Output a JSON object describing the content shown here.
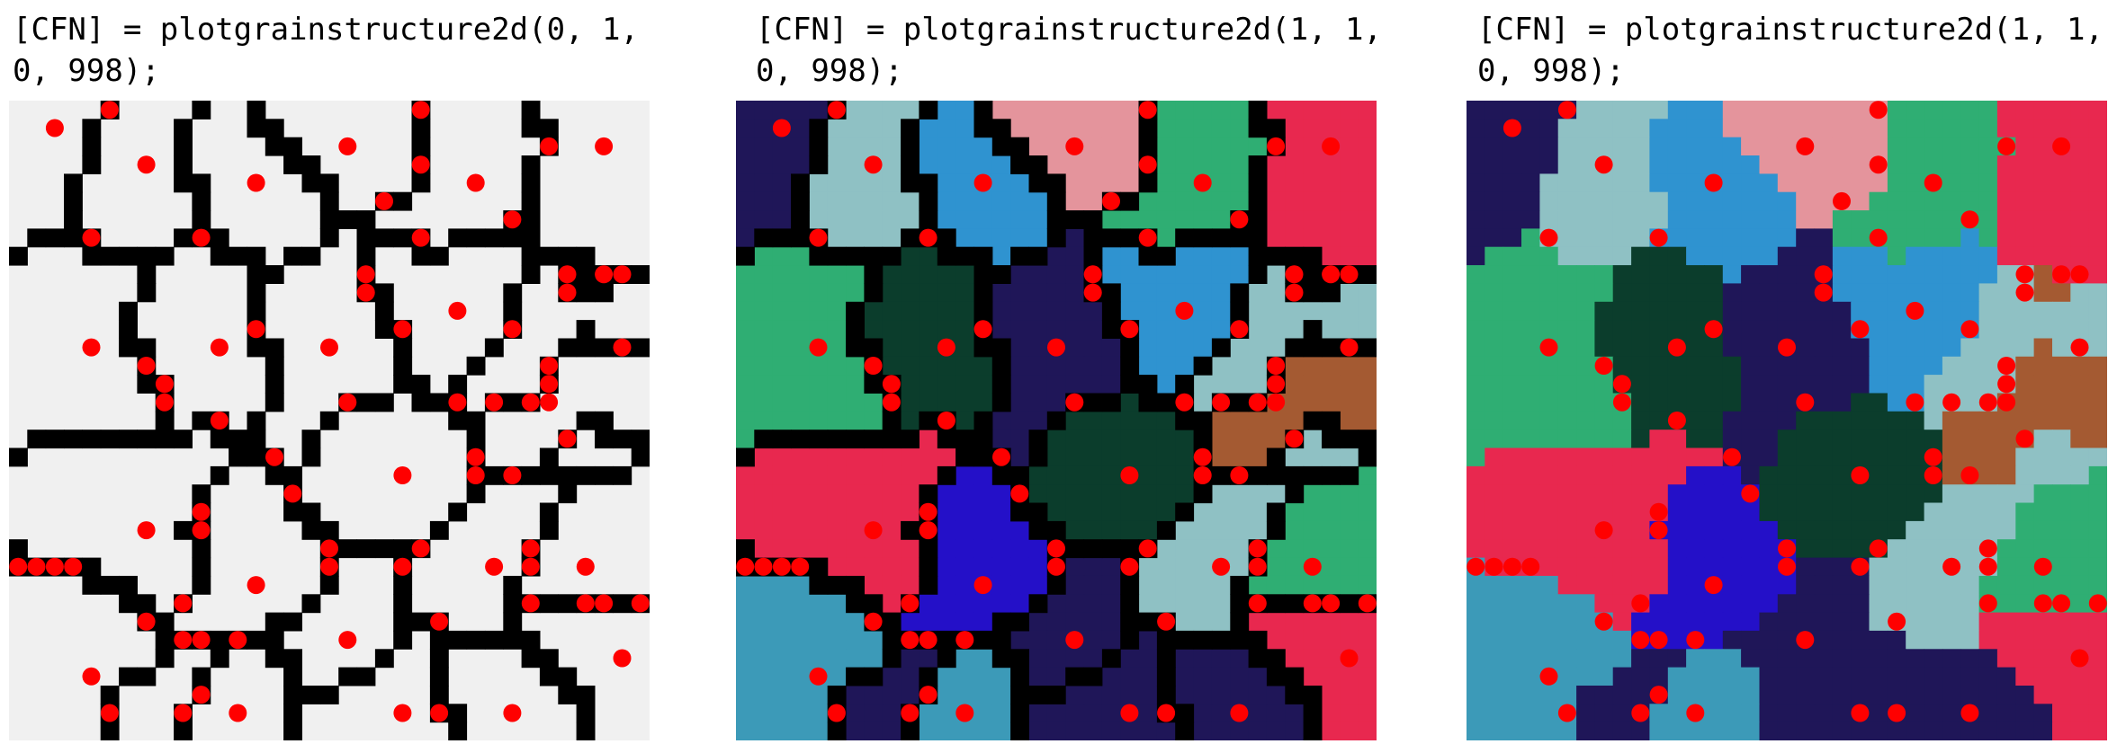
{
  "panels": [
    {
      "caption_line1": "[CFN] = plotgrainstructure2d(0, 1,",
      "caption_line2": "0, 998);",
      "mode": "boundaries"
    },
    {
      "caption_line1": "[CFN] = plotgrainstructure2d(1, 1,",
      "caption_line2": "0, 998);",
      "mode": "grains-with-boundaries"
    },
    {
      "caption_line1": "[CFN] = plotgrainstructure2d(1, 1,",
      "caption_line2": "0, 998);",
      "mode": "grains"
    }
  ],
  "colors": {
    "background": "#f0f0f0",
    "boundary": "#000000",
    "nucleus": "#ff0000",
    "grains": [
      "#8fc1c4",
      "#2f93d0",
      "#e4949c",
      "#2fae73",
      "#0b3d2c",
      "#1f1658",
      "#e8284f",
      "#2410c8",
      "#3c9ab8",
      "#a45a32"
    ]
  }
}
